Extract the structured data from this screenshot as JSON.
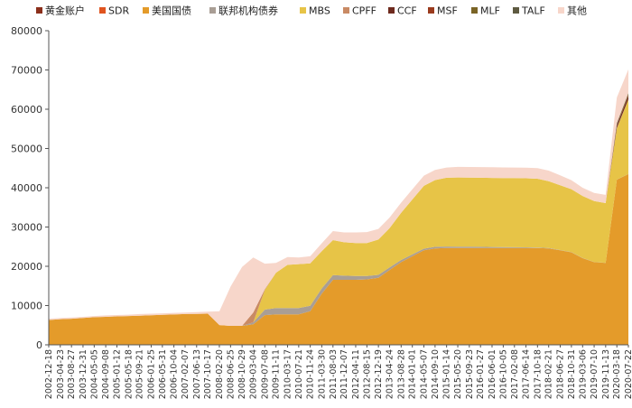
{
  "chart_data": {
    "type": "area",
    "stacked": true,
    "title": "",
    "xlabel": "",
    "ylabel": "",
    "ylim": [
      0,
      80000
    ],
    "yticks": [
      0,
      10000,
      20000,
      30000,
      40000,
      50000,
      60000,
      70000,
      80000
    ],
    "grid": false,
    "legend_position": "top",
    "x_ticks": [
      "2002-12-18",
      "2003-04-23",
      "2003-08-27",
      "2003-12-31",
      "2004-05-05",
      "2004-09-08",
      "2005-01-12",
      "2005-05-18",
      "2005-09-21",
      "2006-01-25",
      "2006-05-31",
      "2006-10-04",
      "2007-02-07",
      "2007-06-13",
      "2007-10-17",
      "2008-02-20",
      "2008-06-25",
      "2008-10-29",
      "2009-03-04",
      "2009-07-08",
      "2009-11-11",
      "2010-03-17",
      "2010-07-21",
      "2010-11-24",
      "2011-03-30",
      "2011-08-03",
      "2011-12-07",
      "2012-04-11",
      "2012-08-15",
      "2012-12-19",
      "2013-04-24",
      "2013-08-28",
      "2014-01-01",
      "2014-05-07",
      "2014-09-10",
      "2015-01-14",
      "2015-05-20",
      "2015-09-23",
      "2016-01-27",
      "2016-06-01",
      "2016-10-05",
      "2017-02-08",
      "2017-06-14",
      "2017-10-18",
      "2018-02-21",
      "2018-06-27",
      "2018-10-31",
      "2019-03-06",
      "2019-07-10",
      "2019-11-13",
      "2020-03-18",
      "2020-07-22"
    ],
    "x": [
      2002.96,
      2003.31,
      2003.65,
      2004.0,
      2004.34,
      2004.69,
      2005.03,
      2005.38,
      2005.72,
      2006.07,
      2006.41,
      2006.76,
      2007.1,
      2007.45,
      2007.79,
      2008.14,
      2008.48,
      2008.83,
      2009.17,
      2009.52,
      2009.86,
      2010.21,
      2010.55,
      2010.9,
      2011.25,
      2011.59,
      2011.93,
      2012.28,
      2012.62,
      2012.97,
      2013.31,
      2013.66,
      2014.0,
      2014.35,
      2014.69,
      2015.04,
      2015.38,
      2015.73,
      2016.07,
      2016.42,
      2016.76,
      2017.1,
      2017.45,
      2017.8,
      2018.14,
      2018.49,
      2018.83,
      2019.17,
      2019.52,
      2019.87,
      2020.21,
      2020.56
    ],
    "series": [
      {
        "name": "黄金账户",
        "color": "#8B2F1B",
        "values": [
          11,
          11,
          11,
          11,
          11,
          11,
          11,
          11,
          11,
          11,
          11,
          11,
          11,
          11,
          11,
          11,
          11,
          11,
          11,
          11,
          11,
          11,
          11,
          11,
          11,
          11,
          11,
          11,
          11,
          11,
          11,
          11,
          11,
          11,
          11,
          11,
          11,
          11,
          11,
          11,
          11,
          11,
          11,
          11,
          11,
          11,
          11,
          11,
          11,
          11,
          11,
          11
        ]
      },
      {
        "name": "SDR",
        "color": "#E0541F",
        "values": [
          22,
          22,
          22,
          22,
          22,
          22,
          22,
          22,
          22,
          22,
          22,
          22,
          22,
          22,
          22,
          22,
          22,
          22,
          22,
          50,
          50,
          50,
          50,
          50,
          50,
          50,
          50,
          50,
          50,
          50,
          50,
          50,
          50,
          50,
          50,
          50,
          50,
          50,
          50,
          50,
          50,
          50,
          50,
          50,
          50,
          50,
          50,
          50,
          50,
          50,
          50,
          50
        ]
      },
      {
        "name": "美国国债",
        "color": "#E49B2A",
        "values": [
          6300,
          6500,
          6600,
          6800,
          7000,
          7100,
          7200,
          7300,
          7400,
          7500,
          7600,
          7700,
          7800,
          7850,
          7900,
          5000,
          4800,
          4800,
          5200,
          7500,
          7700,
          7700,
          7700,
          8500,
          13000,
          16500,
          16500,
          16500,
          16600,
          17000,
          19000,
          21000,
          22500,
          24000,
          24500,
          24600,
          24600,
          24600,
          24600,
          24600,
          24600,
          24600,
          24600,
          24600,
          24500,
          24000,
          23500,
          22000,
          21000,
          20800,
          42000,
          43400
        ]
      },
      {
        "name": "联邦机构债券",
        "color": "#A99E95",
        "values": [
          0,
          0,
          0,
          0,
          0,
          0,
          0,
          0,
          0,
          0,
          0,
          0,
          0,
          0,
          0,
          0,
          0,
          0,
          500,
          1400,
          1600,
          1600,
          1600,
          1400,
          1300,
          1200,
          1050,
          950,
          850,
          750,
          650,
          550,
          450,
          420,
          400,
          380,
          360,
          330,
          300,
          250,
          220,
          190,
          160,
          130,
          100,
          80,
          60,
          45,
          30,
          25,
          25,
          25
        ]
      },
      {
        "name": "MBS",
        "color": "#E7C447",
        "values": [
          0,
          0,
          0,
          0,
          0,
          0,
          0,
          0,
          0,
          0,
          0,
          0,
          0,
          0,
          0,
          0,
          0,
          0,
          0,
          5000,
          9000,
          11000,
          11200,
          10800,
          9500,
          8900,
          8500,
          8400,
          8400,
          9000,
          10000,
          12000,
          14000,
          16000,
          17000,
          17500,
          17600,
          17600,
          17600,
          17600,
          17600,
          17600,
          17600,
          17500,
          17000,
          16500,
          16000,
          15800,
          15500,
          15200,
          13000,
          19000
        ]
      },
      {
        "name": "CPFF",
        "color": "#C98A64",
        "values": [
          0,
          0,
          0,
          0,
          0,
          0,
          0,
          0,
          0,
          0,
          0,
          0,
          0,
          0,
          0,
          0,
          0,
          0,
          2500,
          200,
          0,
          0,
          0,
          0,
          0,
          0,
          0,
          0,
          0,
          0,
          0,
          0,
          0,
          0,
          0,
          0,
          0,
          0,
          0,
          0,
          0,
          0,
          0,
          0,
          0,
          0,
          0,
          0,
          0,
          0,
          200,
          40
        ]
      },
      {
        "name": "CCF",
        "color": "#6E2A1E",
        "values": [
          0,
          0,
          0,
          0,
          0,
          0,
          0,
          0,
          0,
          0,
          0,
          0,
          0,
          0,
          0,
          0,
          0,
          0,
          0,
          0,
          0,
          0,
          0,
          0,
          0,
          0,
          0,
          0,
          0,
          0,
          0,
          0,
          0,
          0,
          0,
          0,
          0,
          0,
          0,
          0,
          0,
          0,
          0,
          0,
          0,
          0,
          0,
          0,
          0,
          0,
          600,
          900
        ]
      },
      {
        "name": "MSF",
        "color": "#9A3B1E",
        "values": [
          0,
          0,
          0,
          0,
          0,
          0,
          0,
          0,
          0,
          0,
          0,
          0,
          0,
          0,
          0,
          0,
          0,
          0,
          0,
          0,
          0,
          0,
          0,
          0,
          0,
          0,
          0,
          0,
          0,
          0,
          0,
          0,
          0,
          0,
          0,
          0,
          0,
          0,
          0,
          0,
          0,
          0,
          0,
          0,
          0,
          0,
          0,
          0,
          0,
          0,
          100,
          190
        ]
      },
      {
        "name": "MLF",
        "color": "#7A6426",
        "values": [
          0,
          0,
          0,
          0,
          0,
          0,
          0,
          0,
          0,
          0,
          0,
          0,
          0,
          0,
          0,
          0,
          0,
          0,
          0,
          0,
          0,
          0,
          0,
          0,
          0,
          0,
          0,
          0,
          0,
          0,
          0,
          0,
          0,
          0,
          0,
          0,
          0,
          0,
          0,
          0,
          0,
          0,
          0,
          0,
          0,
          0,
          0,
          0,
          0,
          0,
          300,
          400
        ]
      },
      {
        "name": "TALF",
        "color": "#5E5A41",
        "values": [
          0,
          0,
          0,
          0,
          0,
          0,
          0,
          0,
          0,
          0,
          0,
          0,
          0,
          0,
          0,
          0,
          0,
          0,
          0,
          0,
          0,
          0,
          0,
          0,
          0,
          0,
          0,
          0,
          0,
          0,
          0,
          0,
          0,
          0,
          0,
          0,
          0,
          0,
          0,
          0,
          0,
          0,
          0,
          0,
          0,
          0,
          0,
          0,
          0,
          0,
          200,
          120
        ]
      },
      {
        "name": "其他",
        "color": "#F7D6CA",
        "values": [
          300,
          300,
          300,
          300,
          300,
          350,
          350,
          350,
          400,
          400,
          400,
          400,
          400,
          450,
          500,
          3500,
          10000,
          15000,
          14000,
          6500,
          2500,
          2000,
          1700,
          1800,
          2000,
          2300,
          2500,
          2700,
          2800,
          2700,
          2700,
          2600,
          2600,
          2600,
          2600,
          2600,
          2700,
          2700,
          2700,
          2700,
          2700,
          2700,
          2700,
          2700,
          2700,
          2500,
          2300,
          2100,
          2100,
          2100,
          6500,
          6000
        ]
      }
    ]
  }
}
